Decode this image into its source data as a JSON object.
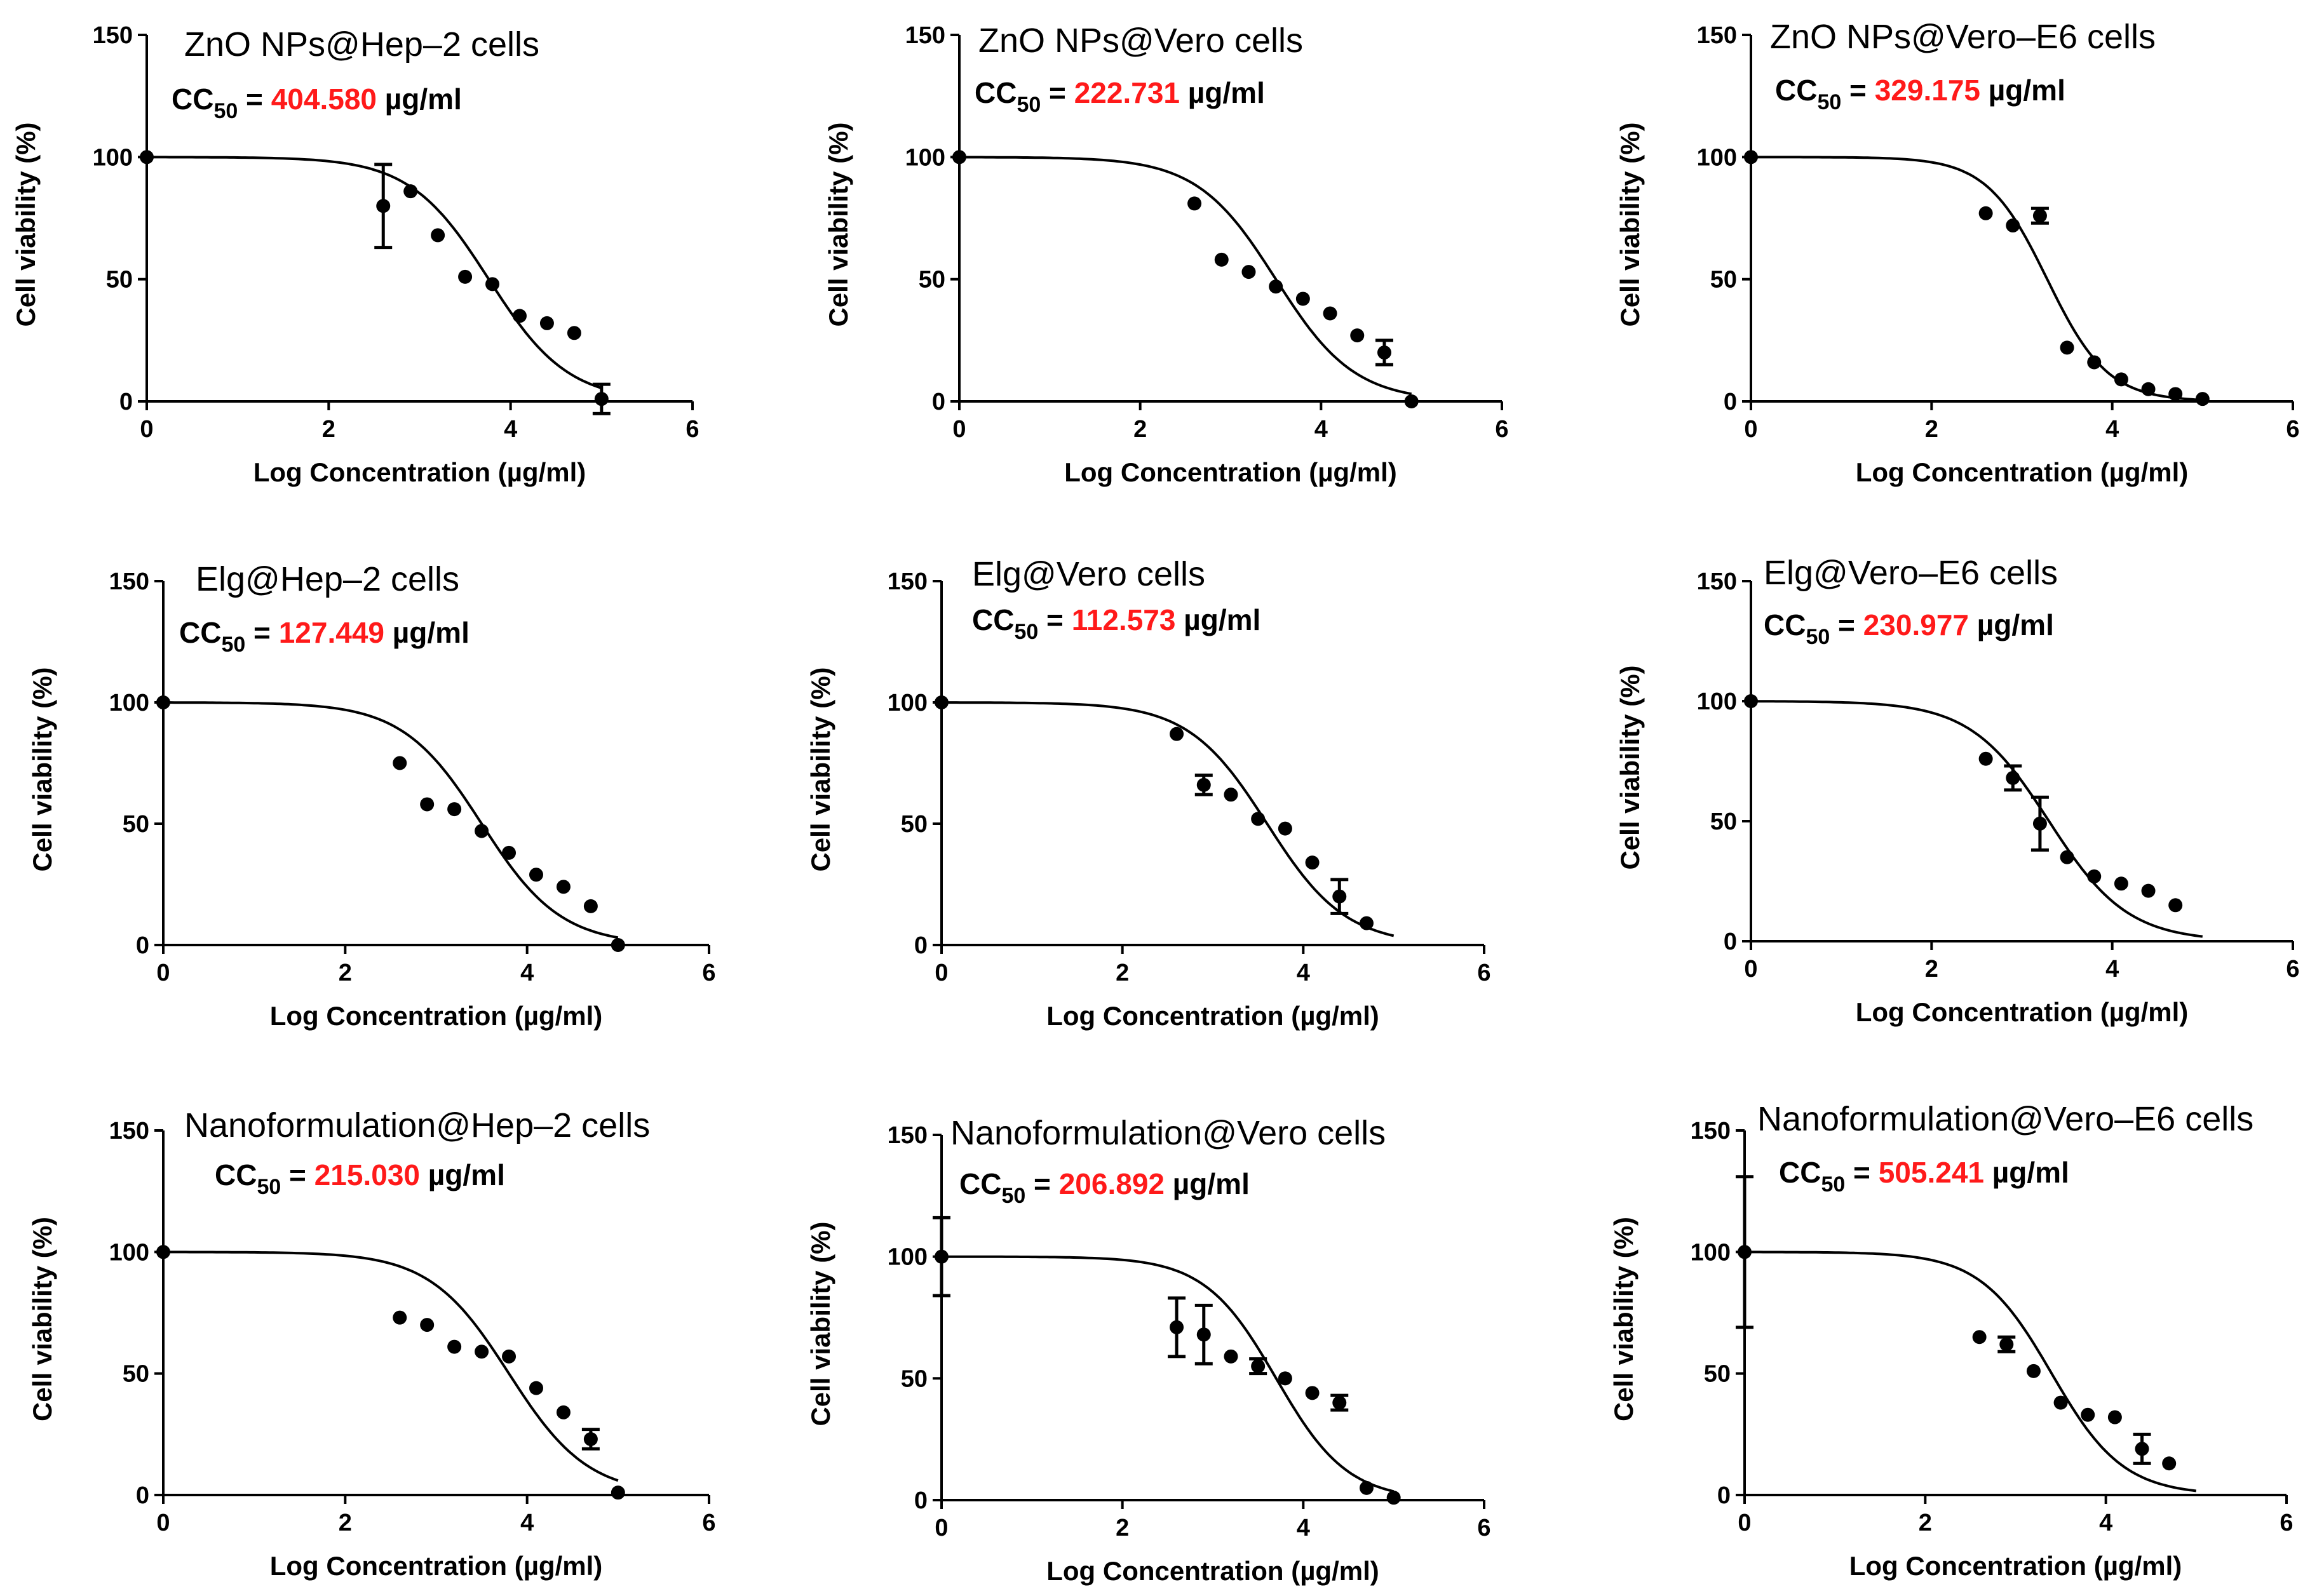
{
  "chart_data": [
    {
      "type": "scatter",
      "title": "ZnO NPs@Hep–2 cells",
      "cc50": {
        "label": "CC",
        "sub": "50",
        "eq": " = ",
        "value": "404.580",
        "unit": " µg/ml"
      },
      "xlabel": "Log Concentration (µg/ml)",
      "ylabel": "Cell viability (%)",
      "xlim": [
        0,
        6
      ],
      "ylim": [
        0,
        150
      ],
      "xticks": [
        "0",
        "2",
        "4",
        "6"
      ],
      "yticks": [
        "0",
        "50",
        "100",
        "150"
      ],
      "fit": {
        "bottom": 0,
        "top": 100,
        "logIC50": 3.76,
        "hill": 1.0
      },
      "series": [
        {
          "name": "data",
          "x": [
            0,
            2.6,
            2.9,
            3.2,
            3.5,
            3.8,
            4.1,
            4.4,
            4.7,
            5.0
          ],
          "y": [
            100,
            80,
            86,
            68,
            51,
            48,
            35,
            32,
            28,
            1
          ],
          "err": [
            0,
            17,
            0,
            0,
            0,
            0,
            0,
            0,
            0,
            6
          ]
        }
      ]
    },
    {
      "type": "scatter",
      "title": "ZnO NPs@Vero cells",
      "cc50": {
        "label": "CC",
        "sub": "50",
        "eq": " = ",
        "value": "222.731",
        "unit": " µg/ml"
      },
      "xlabel": "Log Concentration (µg/ml)",
      "ylabel": "Cell viability (%)",
      "xlim": [
        0,
        6
      ],
      "ylim": [
        0,
        150
      ],
      "xticks": [
        "0",
        "2",
        "4",
        "6"
      ],
      "yticks": [
        "0",
        "50",
        "100",
        "150"
      ],
      "fit": {
        "bottom": 0,
        "top": 100,
        "logIC50": 3.5,
        "hill": 1.0
      },
      "series": [
        {
          "name": "data",
          "x": [
            0,
            2.6,
            2.9,
            3.2,
            3.5,
            3.8,
            4.1,
            4.4,
            4.7,
            5.0
          ],
          "y": [
            100,
            81,
            58,
            53,
            47,
            42,
            36,
            27,
            20,
            0
          ],
          "err": [
            0,
            0,
            0,
            0,
            0,
            0,
            0,
            0,
            5,
            0
          ]
        }
      ]
    },
    {
      "type": "scatter",
      "title": "ZnO NPs@Vero–E6 cells",
      "cc50": {
        "label": "CC",
        "sub": "50",
        "eq": " = ",
        "value": "329.175",
        "unit": " µg/ml"
      },
      "xlabel": "Log Concentration (µg/ml)",
      "ylabel": "Cell viability (%)",
      "xlim": [
        0,
        6
      ],
      "ylim": [
        0,
        150
      ],
      "xticks": [
        "0",
        "2",
        "4",
        "6"
      ],
      "yticks": [
        "0",
        "50",
        "100",
        "150"
      ],
      "fit": {
        "bottom": 0,
        "top": 100,
        "logIC50": 3.28,
        "hill": 1.3
      },
      "series": [
        {
          "name": "data",
          "x": [
            0,
            2.6,
            2.9,
            3.2,
            3.5,
            3.8,
            4.1,
            4.4,
            4.7,
            5.0
          ],
          "y": [
            100,
            77,
            72,
            76,
            22,
            16,
            9,
            5,
            3,
            1
          ],
          "err": [
            0,
            0,
            0,
            3,
            0,
            0,
            0,
            0,
            0,
            0
          ]
        }
      ]
    },
    {
      "type": "scatter",
      "title": "Elg@Hep–2 cells",
      "cc50": {
        "label": "CC",
        "sub": "50",
        "eq": " = ",
        "value": "127.449",
        "unit": " µg/ml"
      },
      "xlabel": "Log Concentration (µg/ml)",
      "ylabel": "Cell viability (%)",
      "xlim": [
        0,
        6
      ],
      "ylim": [
        0,
        150
      ],
      "xticks": [
        "0",
        "2",
        "4",
        "6"
      ],
      "yticks": [
        "0",
        "50",
        "100",
        "150"
      ],
      "fit": {
        "bottom": 0,
        "top": 100,
        "logIC50": 3.5,
        "hill": 1.0
      },
      "series": [
        {
          "name": "data",
          "x": [
            0,
            2.6,
            2.9,
            3.2,
            3.5,
            3.8,
            4.1,
            4.4,
            4.7,
            5.0
          ],
          "y": [
            100,
            75,
            58,
            56,
            47,
            38,
            29,
            24,
            16,
            0
          ],
          "err": [
            0,
            0,
            0,
            0,
            0,
            0,
            0,
            0,
            0,
            0
          ]
        }
      ]
    },
    {
      "type": "scatter",
      "title": "Elg@Vero cells",
      "cc50": {
        "label": "CC",
        "sub": "50",
        "eq": " = ",
        "value": "112.573",
        "unit": " µg/ml"
      },
      "xlabel": "Log Concentration (µg/ml)",
      "ylabel": "Cell viability (%)",
      "xlim": [
        0,
        6
      ],
      "ylim": [
        0,
        150
      ],
      "xticks": [
        "0",
        "2",
        "4",
        "6"
      ],
      "yticks": [
        "0",
        "50",
        "100",
        "150"
      ],
      "fit": {
        "bottom": 0,
        "top": 100,
        "logIC50": 3.6,
        "hill": 1.0
      },
      "series": [
        {
          "name": "data",
          "x": [
            0,
            2.6,
            2.9,
            3.2,
            3.5,
            3.8,
            4.1,
            4.4,
            4.7
          ],
          "y": [
            100,
            87,
            66,
            62,
            52,
            48,
            34,
            20,
            9
          ],
          "err": [
            0,
            0,
            4,
            0,
            0,
            0,
            0,
            7,
            0
          ]
        }
      ]
    },
    {
      "type": "scatter",
      "title": "Elg@Vero–E6 cells",
      "cc50": {
        "label": "CC",
        "sub": "50",
        "eq": " = ",
        "value": "230.977",
        "unit": " µg/ml"
      },
      "xlabel": "Log Concentration (µg/ml)",
      "ylabel": "Cell viability (%)",
      "xlim": [
        0,
        6
      ],
      "ylim": [
        0,
        150
      ],
      "xticks": [
        "0",
        "2",
        "4",
        "6"
      ],
      "yticks": [
        "0",
        "50",
        "100",
        "150"
      ],
      "fit": {
        "bottom": 0,
        "top": 100,
        "logIC50": 3.3,
        "hill": 1.0
      },
      "series": [
        {
          "name": "data",
          "x": [
            0,
            2.6,
            2.9,
            3.2,
            3.5,
            3.8,
            4.1,
            4.4,
            4.7
          ],
          "y": [
            100,
            76,
            68,
            49,
            35,
            27,
            24,
            21,
            15
          ],
          "err": [
            0,
            0,
            5,
            11,
            0,
            0,
            0,
            0,
            0
          ]
        }
      ]
    },
    {
      "type": "scatter",
      "title": "Nanoformulation@Hep–2 cells",
      "cc50": {
        "label": "CC",
        "sub": "50",
        "eq": " = ",
        "value": "215.030",
        "unit": " µg/ml"
      },
      "xlabel": "Log Concentration (µg/ml)",
      "ylabel": "Cell viability (%)",
      "xlim": [
        0,
        6
      ],
      "ylim": [
        0,
        150
      ],
      "xticks": [
        "0",
        "2",
        "4",
        "6"
      ],
      "yticks": [
        "0",
        "50",
        "100",
        "150"
      ],
      "fit": {
        "bottom": 0,
        "top": 100,
        "logIC50": 3.8,
        "hill": 1.0
      },
      "series": [
        {
          "name": "data",
          "x": [
            0,
            2.6,
            2.9,
            3.2,
            3.5,
            3.8,
            4.1,
            4.4,
            4.7,
            5.0
          ],
          "y": [
            100,
            73,
            70,
            61,
            59,
            57,
            44,
            34,
            23,
            1
          ],
          "err": [
            0,
            0,
            0,
            0,
            0,
            0,
            0,
            0,
            4,
            0
          ]
        }
      ]
    },
    {
      "type": "scatter",
      "title": "Nanoformulation@Vero cells",
      "cc50": {
        "label": "CC",
        "sub": "50",
        "eq": " = ",
        "value": "206.892",
        "unit": " µg/ml"
      },
      "xlabel": "Log Concentration (µg/ml)",
      "ylabel": "Cell viability (%)",
      "xlim": [
        0,
        6
      ],
      "ylim": [
        0,
        150
      ],
      "xticks": [
        "0",
        "2",
        "4",
        "6"
      ],
      "yticks": [
        "0",
        "50",
        "100",
        "150"
      ],
      "fit": {
        "bottom": 0,
        "top": 100,
        "logIC50": 3.7,
        "hill": 1.1
      },
      "series": [
        {
          "name": "data",
          "x": [
            0,
            2.6,
            2.9,
            3.2,
            3.5,
            3.8,
            4.1,
            4.4,
            4.7,
            5.0
          ],
          "y": [
            100,
            71,
            68,
            59,
            55,
            50,
            44,
            40,
            5,
            1
          ],
          "err": [
            16,
            12,
            12,
            0,
            3,
            0,
            0,
            3,
            0,
            0
          ]
        }
      ]
    },
    {
      "type": "scatter",
      "title": "Nanoformulation@Vero–E6 cells",
      "cc50": {
        "label": "CC",
        "sub": "50",
        "eq": " = ",
        "value": "505.241",
        "unit": " µg/ml"
      },
      "xlabel": "Log Concentration (µg/ml)",
      "ylabel": "Cell viability (%)",
      "xlim": [
        0,
        6
      ],
      "ylim": [
        0,
        150
      ],
      "xticks": [
        "0",
        "2",
        "4",
        "6"
      ],
      "yticks": [
        "0",
        "50",
        "100",
        "150"
      ],
      "fit": {
        "bottom": 0,
        "top": 100,
        "logIC50": 3.4,
        "hill": 1.1
      },
      "series": [
        {
          "name": "data",
          "x": [
            0,
            2.6,
            2.9,
            3.2,
            3.5,
            3.8,
            4.1,
            4.4,
            4.7
          ],
          "y": [
            100,
            65,
            62,
            51,
            38,
            33,
            32,
            19,
            13
          ],
          "err": [
            31,
            0,
            3,
            0,
            0,
            0,
            0,
            6,
            0
          ]
        }
      ]
    }
  ]
}
